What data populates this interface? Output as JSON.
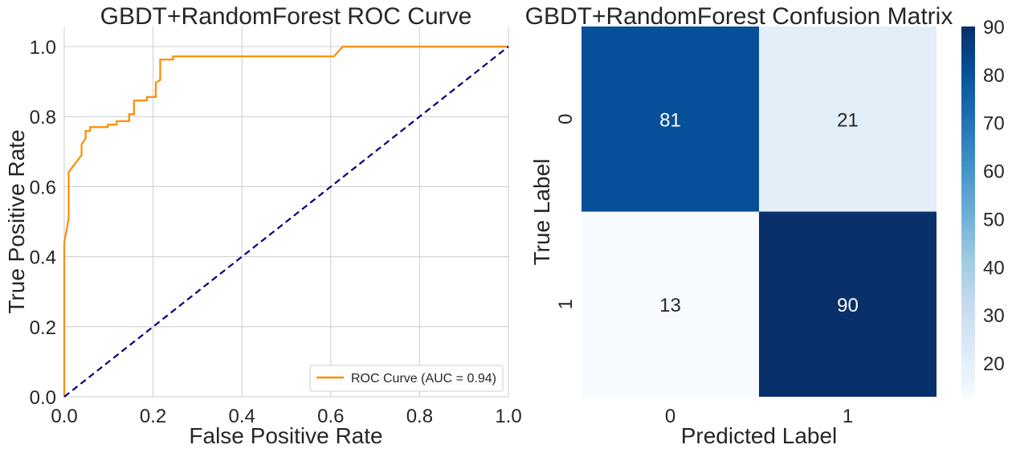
{
  "chart_data": [
    {
      "type": "line",
      "title": "GBDT+RandomForest ROC Curve",
      "xlabel": "False Positive Rate",
      "ylabel": "True Positive Rate",
      "xlim": [
        0,
        1
      ],
      "ylim": [
        0,
        1.05
      ],
      "xticks": [
        "0.0",
        "0.2",
        "0.4",
        "0.6",
        "0.8",
        "1.0"
      ],
      "yticks": [
        "0.0",
        "0.2",
        "0.4",
        "0.6",
        "0.8",
        "1.0"
      ],
      "grid": true,
      "legend_position": "lower-right",
      "series": [
        {
          "name": "ROC Curve (AUC = 0.94)",
          "color": "#ff8c00",
          "x": [
            0,
            0,
            0.01,
            0.01,
            0.039,
            0.039,
            0.048,
            0.048,
            0.058,
            0.058,
            0.098,
            0.098,
            0.118,
            0.118,
            0.146,
            0.146,
            0.157,
            0.157,
            0.186,
            0.186,
            0.206,
            0.206,
            0.216,
            0.216,
            0.245,
            0.245,
            0.607,
            0.627,
            1.0
          ],
          "y": [
            0,
            0.44,
            0.51,
            0.642,
            0.69,
            0.72,
            0.738,
            0.759,
            0.759,
            0.77,
            0.77,
            0.777,
            0.777,
            0.787,
            0.787,
            0.807,
            0.807,
            0.846,
            0.846,
            0.856,
            0.856,
            0.897,
            0.904,
            0.963,
            0.963,
            0.972,
            0.972,
            1.0,
            1.0
          ]
        },
        {
          "color": "#000080",
          "style": "dashed",
          "x": [
            0,
            1
          ],
          "y": [
            0,
            1
          ]
        }
      ]
    },
    {
      "type": "heatmap",
      "title": "GBDT+RandomForest Confusion Matrix",
      "xlabel": "Predicted Label",
      "ylabel": "True Label",
      "x_categories": [
        "0",
        "1"
      ],
      "y_categories": [
        "0",
        "1"
      ],
      "values": [
        [
          81,
          21
        ],
        [
          13,
          90
        ]
      ],
      "colormap": "Blues",
      "colorbar": {
        "min": 13,
        "max": 90,
        "ticks": [
          "20",
          "30",
          "40",
          "50",
          "60",
          "70",
          "80",
          "90"
        ]
      }
    }
  ]
}
